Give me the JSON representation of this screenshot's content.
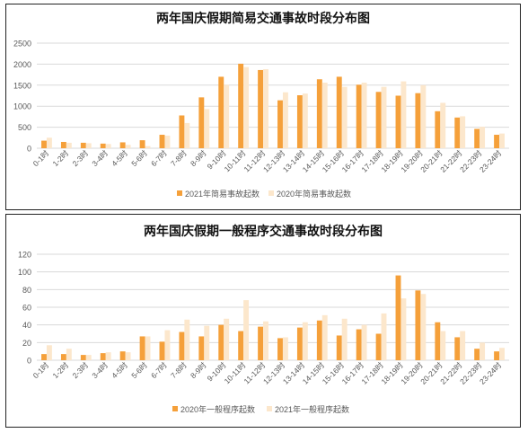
{
  "chart_data": [
    {
      "type": "bar",
      "title": "两年国庆假期简易交通事故时段分布图",
      "categories": [
        "0-1时",
        "1-2时",
        "2-3时",
        "3-4时",
        "4-5时",
        "5-6时",
        "6-7时",
        "7-8时",
        "8-9时",
        "9-10时",
        "10-11时",
        "11-12时",
        "12-13时",
        "13-14时",
        "14-15时",
        "15-16时",
        "16-17时",
        "17-18时",
        "18-19时",
        "19-20时",
        "20-21时",
        "21-22时",
        "22-23时",
        "23-24时"
      ],
      "series": [
        {
          "name": "2021年简易事故起数",
          "color": "#F5A03A",
          "values": [
            180,
            150,
            130,
            110,
            140,
            190,
            320,
            780,
            1210,
            1700,
            2010,
            1860,
            1140,
            1260,
            1640,
            1700,
            1510,
            1340,
            1250,
            1310,
            880,
            730,
            460,
            320
          ]
        },
        {
          "name": "2020年简易事故起数",
          "color": "#FCE7CC",
          "values": [
            250,
            130,
            120,
            100,
            80,
            50,
            300,
            600,
            930,
            1510,
            1930,
            1880,
            1330,
            1300,
            1560,
            1460,
            1560,
            1460,
            1590,
            1500,
            1080,
            760,
            510,
            350
          ]
        }
      ],
      "ylim": [
        0,
        2500
      ],
      "yticks": [
        0,
        500,
        1000,
        1500,
        2000,
        2500
      ],
      "grid": true,
      "legend": "bottom"
    },
    {
      "type": "bar",
      "title": "两年国庆假期一般程序交通事故时段分布图",
      "categories": [
        "0-1时",
        "1-2时",
        "2-3时",
        "3-4时",
        "4-5时",
        "5-6时",
        "6-7时",
        "7-8时",
        "8-9时",
        "9-10时",
        "10-11时",
        "11-12时",
        "12-13时",
        "13-14时",
        "14-15时",
        "15-16时",
        "16-17时",
        "17-18时",
        "18-19时",
        "19-20时",
        "20-21时",
        "21-22时",
        "22-23时",
        "23-24时"
      ],
      "series": [
        {
          "name": "2020年一般程序起数",
          "color": "#F5A03A",
          "values": [
            7,
            7,
            6,
            8,
            10,
            27,
            21,
            32,
            27,
            40,
            33,
            38,
            25,
            37,
            45,
            28,
            35,
            30,
            96,
            79,
            43,
            26,
            13,
            10
          ]
        },
        {
          "name": "2021年一般程序起数",
          "color": "#FCE7CC",
          "values": [
            17,
            13,
            6,
            9,
            9,
            27,
            34,
            46,
            39,
            47,
            68,
            44,
            26,
            43,
            51,
            47,
            40,
            53,
            70,
            75,
            33,
            33,
            20,
            14
          ]
        }
      ],
      "ylim": [
        0,
        120
      ],
      "yticks": [
        0,
        20,
        40,
        60,
        80,
        100,
        120
      ],
      "grid": true,
      "legend": "bottom"
    }
  ]
}
